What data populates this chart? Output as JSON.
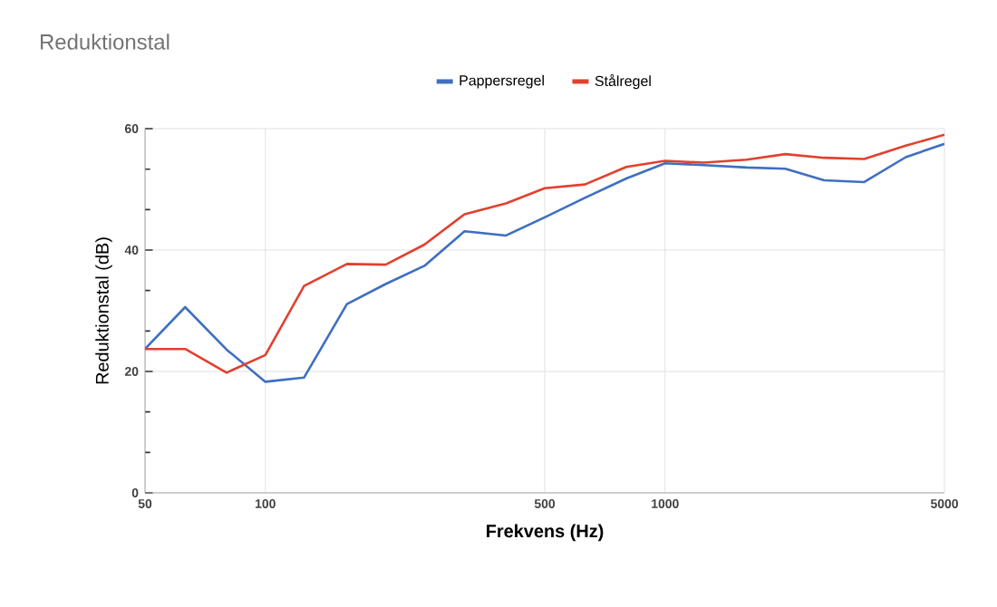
{
  "chart_data": {
    "type": "line",
    "title": "Reduktionstal",
    "xlabel": "Frekvens (Hz)",
    "ylabel": "Reduktionstal (dB)",
    "x": [
      50,
      63,
      80,
      100,
      125,
      160,
      200,
      250,
      315,
      400,
      500,
      630,
      800,
      1000,
      1250,
      1600,
      2000,
      2500,
      3150,
      4000,
      5000
    ],
    "series": [
      {
        "name": "Pappersregel",
        "color": "#3f6fc0",
        "values": [
          23.7,
          30.6,
          23.6,
          18.3,
          19.0,
          31.1,
          34.4,
          37.4,
          43.1,
          42.4,
          45.4,
          48.6,
          51.8,
          54.3,
          54.0,
          53.6,
          53.4,
          51.5,
          51.2,
          55.3,
          57.5
        ]
      },
      {
        "name": "Stålregel",
        "color": "#e0412f",
        "values": [
          23.7,
          23.7,
          19.8,
          22.7,
          34.1,
          37.7,
          37.6,
          40.9,
          45.9,
          47.7,
          50.2,
          50.8,
          53.7,
          54.7,
          54.4,
          54.9,
          55.8,
          55.2,
          55.0,
          57.2,
          59.0
        ]
      }
    ],
    "log": "x",
    "xlim": [
      50,
      5000
    ],
    "xticks": [
      50,
      100,
      500,
      1000,
      5000
    ],
    "ylim": [
      0,
      60
    ],
    "yticks": [
      0,
      20,
      40,
      60
    ],
    "grid": true,
    "legend": "top",
    "marker": "none",
    "line_style": "solid"
  }
}
